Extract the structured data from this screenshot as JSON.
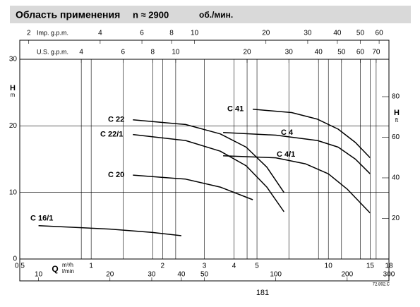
{
  "header": {
    "title": "Область применения",
    "speed": "n ≈ 2900",
    "unit": "об./мин."
  },
  "chart_data": {
    "type": "line",
    "x_label": "Q",
    "x_unit": "m³/h",
    "x2_unit": "l/min",
    "y_label": "H",
    "y_unit": "m",
    "y2_label": "H",
    "y2_unit": "ft",
    "xlim": [
      0.5,
      18
    ],
    "xticks": [
      0.5,
      1,
      2,
      3,
      4,
      5,
      10,
      15,
      18
    ],
    "log_x": true,
    "ylim": [
      0,
      30
    ],
    "yticks": [
      0,
      10,
      20,
      30
    ],
    "y2lim": [
      0,
      98.43
    ],
    "y2ticks": [
      20,
      40,
      60,
      80
    ],
    "grid": true,
    "extra_axes": [
      {
        "label": "Imp. g.p.m.",
        "lim": [
          1.833,
          66
        ],
        "ticks": [
          2,
          4,
          6,
          8,
          10,
          20,
          30,
          40,
          50,
          60
        ]
      },
      {
        "label": "U.S. g.p.m.",
        "lim": [
          2.2015,
          79.25
        ],
        "ticks": [
          4,
          6,
          8,
          10,
          20,
          30,
          40,
          50,
          60,
          70
        ]
      },
      {
        "lim": [
          8.333,
          300
        ],
        "ticks": [
          10,
          20,
          30,
          40,
          50,
          100,
          200,
          300
        ]
      }
    ],
    "series": [
      {
        "name": "C 16/1",
        "color": "#000000",
        "x": [
          0.6,
          1.2,
          1.8,
          2.4
        ],
        "values": [
          5,
          4.5,
          4,
          3.5
        ]
      },
      {
        "name": "C 20",
        "color": "#000000",
        "x": [
          1.5,
          2.5,
          3.5,
          4.8
        ],
        "values": [
          12.6,
          12,
          10.8,
          8.9
        ]
      },
      {
        "name": "C 22",
        "color": "#000000",
        "x": [
          1.5,
          2.5,
          3.5,
          4.5,
          5.5,
          6.5
        ],
        "values": [
          20.9,
          20.2,
          18.8,
          16.8,
          13.8,
          10
        ]
      },
      {
        "name": "C 22/1",
        "color": "#000000",
        "x": [
          1.5,
          2.5,
          3.5,
          4.5,
          5.5,
          6.5
        ],
        "values": [
          18.7,
          17.8,
          16.2,
          14,
          10.8,
          7.1
        ]
      },
      {
        "name": "C 41",
        "color": "#000000",
        "x": [
          4.8,
          7,
          9,
          11,
          13,
          15
        ],
        "values": [
          22.5,
          22,
          21,
          19.5,
          17.5,
          15.2
        ]
      },
      {
        "name": "C 4",
        "color": "#000000",
        "x": [
          3.6,
          6,
          9,
          11,
          13,
          15
        ],
        "values": [
          19,
          18.6,
          17.8,
          16.8,
          15,
          12.8
        ]
      },
      {
        "name": "C 4/1",
        "color": "#000000",
        "x": [
          3.6,
          6,
          8,
          10,
          12,
          15
        ],
        "values": [
          15.5,
          15.2,
          14.3,
          12.8,
          10.5,
          6.9
        ]
      }
    ]
  },
  "page_number": "181",
  "code": "72.892.C"
}
